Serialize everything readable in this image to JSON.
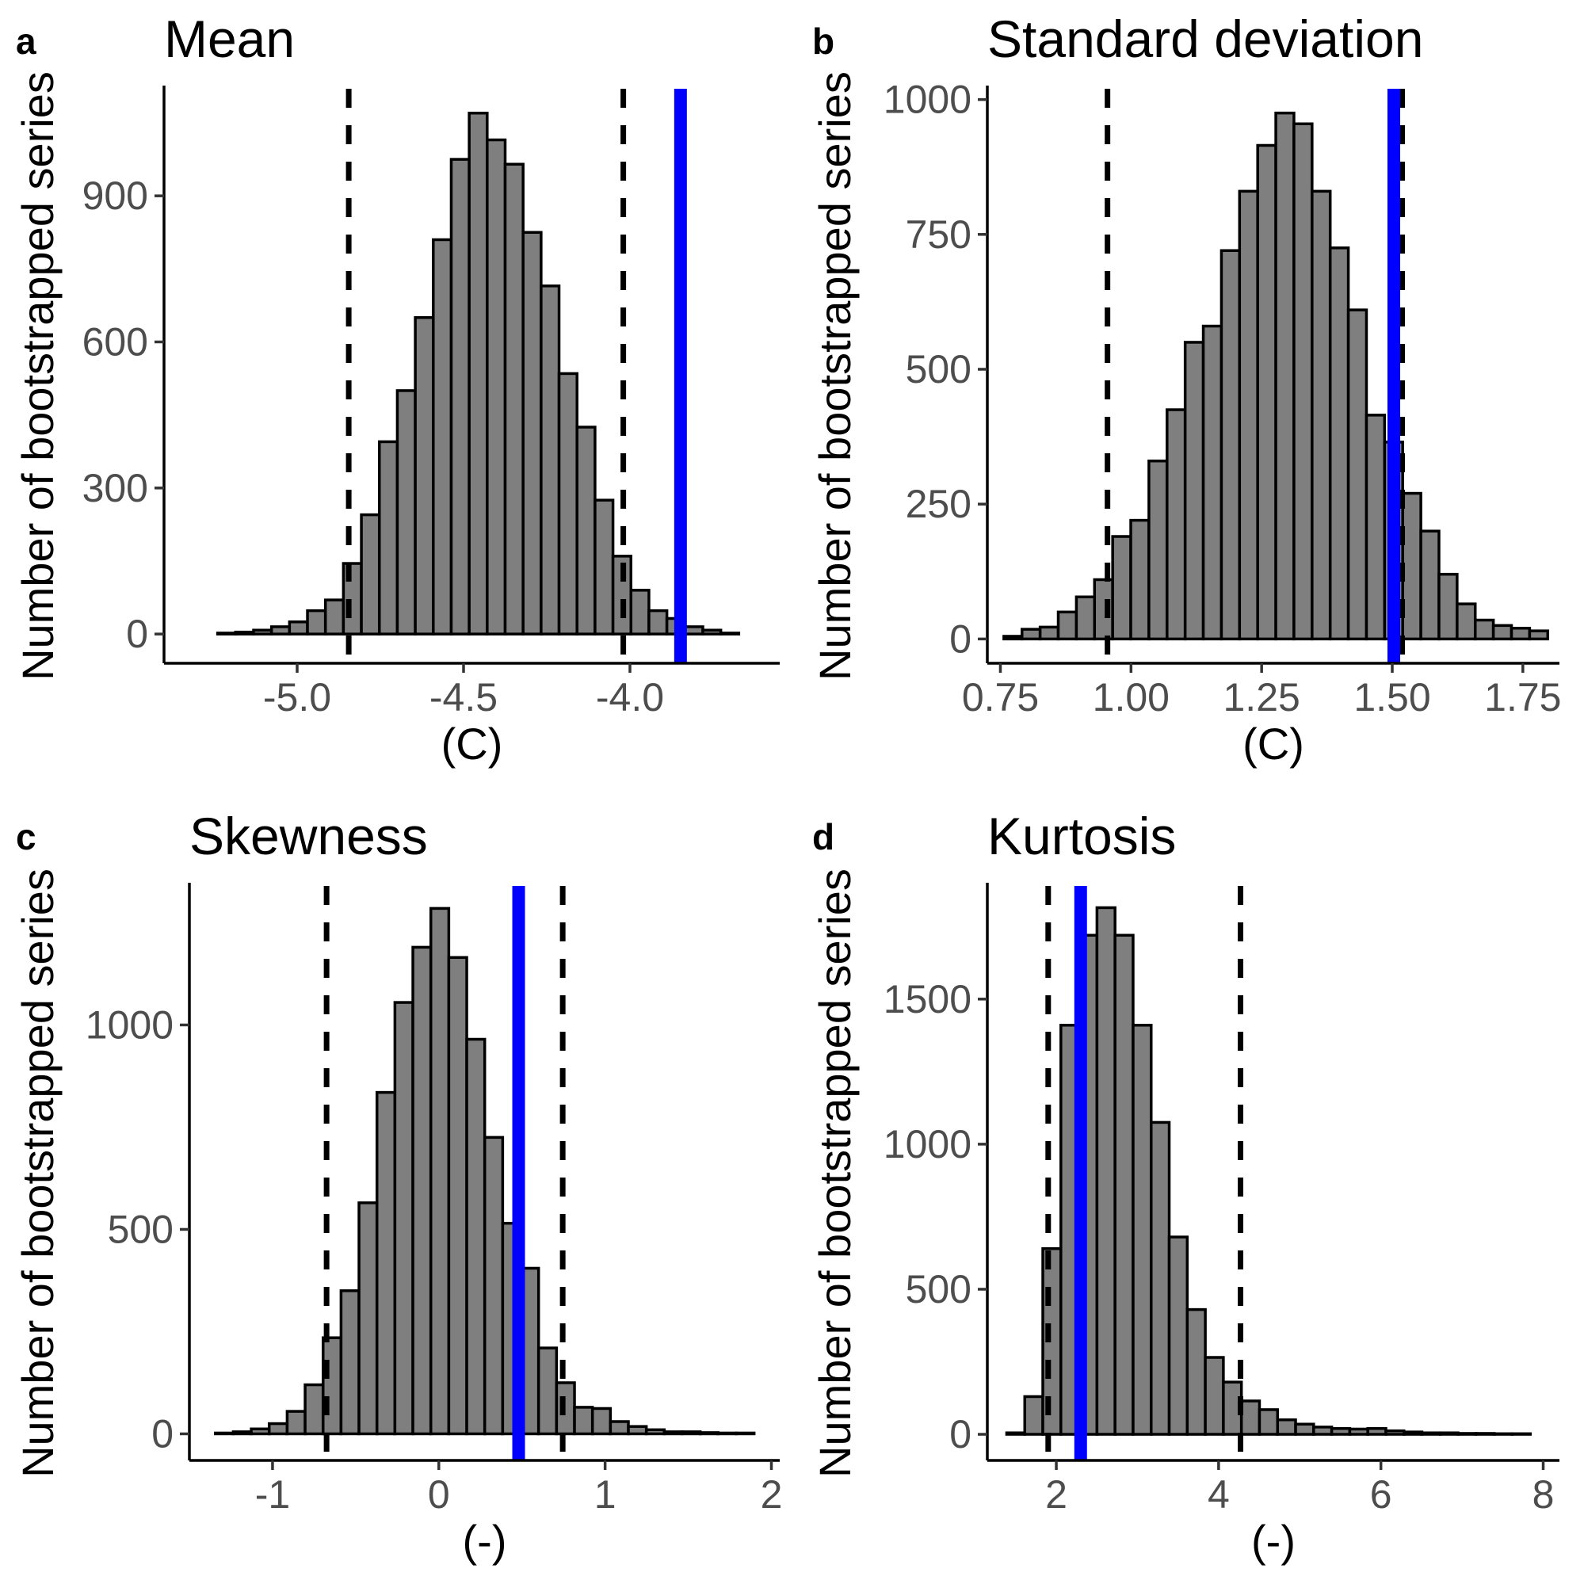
{
  "colors": {
    "bar_fill": "#7f7f7f",
    "bar_border": "#000000",
    "observed_line": "#0000ff",
    "ci_line": "#000000",
    "tick_label": "#4d4d4d"
  },
  "y_axis_title": "Number of bootstrapped series",
  "chart_data": [
    {
      "id": "a",
      "type": "bar",
      "letter": "a",
      "title": "Mean",
      "xlabel": "(C)",
      "ylabel": "Number of bootstrapped series",
      "xlim": [
        -5.4,
        -3.55
      ],
      "ylim": [
        -60,
        1120
      ],
      "xticks": [
        -5.0,
        -4.5,
        -4.0
      ],
      "xtick_labels": [
        "-5.0",
        "-4.5",
        "-4.0"
      ],
      "yticks": [
        0,
        300,
        600,
        900
      ],
      "ytick_labels": [
        "0",
        "300",
        "600",
        "900"
      ],
      "bin_width": 0.054,
      "bin_centers": [
        -5.32,
        -5.266,
        -5.212,
        -5.158,
        -5.104,
        -5.05,
        -4.996,
        -4.942,
        -4.888,
        -4.834,
        -4.78,
        -4.726,
        -4.672,
        -4.618,
        -4.564,
        -4.51,
        -4.456,
        -4.402,
        -4.348,
        -4.294,
        -4.24,
        -4.186,
        -4.132,
        -4.078,
        -4.024,
        -3.97,
        -3.916,
        -3.862,
        -3.808,
        -3.754,
        -3.7
      ],
      "counts": [
        0,
        0,
        2,
        4,
        8,
        15,
        25,
        48,
        70,
        145,
        245,
        395,
        500,
        650,
        810,
        975,
        1070,
        1015,
        965,
        825,
        715,
        535,
        425,
        275,
        160,
        90,
        48,
        32,
        15,
        8,
        2
      ],
      "ci_lower": -4.845,
      "ci_upper": -4.02,
      "observed": -3.848
    },
    {
      "id": "b",
      "type": "bar",
      "letter": "b",
      "title": "Standard deviation",
      "xlabel": "(C)",
      "ylabel": "Number of bootstrapped series",
      "xlim": [
        0.725,
        1.82
      ],
      "ylim": [
        -45,
        1020
      ],
      "xticks": [
        0.75,
        1.0,
        1.25,
        1.5,
        1.75
      ],
      "xtick_labels": [
        "0.75",
        "1.00",
        "1.25",
        "1.50",
        "1.75"
      ],
      "yticks": [
        0,
        250,
        500,
        750,
        1000
      ],
      "ytick_labels": [
        "0",
        "250",
        "500",
        "750",
        "1000"
      ],
      "bin_width": 0.0347,
      "bin_centers": [
        0.774,
        0.8087,
        0.8434,
        0.8781,
        0.9128,
        0.9475,
        0.9822,
        1.0169,
        1.0516,
        1.0863,
        1.121,
        1.1557,
        1.1904,
        1.2251,
        1.2598,
        1.2945,
        1.3292,
        1.3639,
        1.3986,
        1.4333,
        1.468,
        1.5027,
        1.5374,
        1.5721,
        1.6068,
        1.6415,
        1.6762,
        1.7109,
        1.7456,
        1.7803
      ],
      "counts": [
        5,
        18,
        22,
        50,
        78,
        110,
        190,
        220,
        330,
        425,
        550,
        580,
        720,
        830,
        915,
        975,
        955,
        830,
        725,
        610,
        415,
        365,
        270,
        200,
        120,
        65,
        35,
        25,
        20,
        15
      ],
      "ci_lower": 0.955,
      "ci_upper": 1.519,
      "observed": 1.503
    },
    {
      "id": "c",
      "type": "bar",
      "letter": "c",
      "title": "Skewness",
      "xlabel": "(-)",
      "ylabel": "Number of bootstrapped series",
      "xlim": [
        -1.5,
        2.05
      ],
      "ylim": [
        -65,
        1340
      ],
      "xticks": [
        -1,
        0,
        1,
        2
      ],
      "xtick_labels": [
        "-1",
        "0",
        "1",
        "2"
      ],
      "yticks": [
        0,
        500,
        1000
      ],
      "ytick_labels": [
        "0",
        "500",
        "1000"
      ],
      "bin_width": 0.108,
      "bin_centers": [
        -1.29,
        -1.182,
        -1.074,
        -0.966,
        -0.858,
        -0.75,
        -0.642,
        -0.534,
        -0.426,
        -0.318,
        -0.21,
        -0.102,
        0.006,
        0.114,
        0.222,
        0.33,
        0.438,
        0.546,
        0.654,
        0.762,
        0.87,
        0.978,
        1.086,
        1.194,
        1.302,
        1.41,
        1.518,
        1.626,
        1.734,
        1.842
      ],
      "counts": [
        2,
        5,
        12,
        25,
        55,
        120,
        235,
        350,
        565,
        835,
        1055,
        1190,
        1285,
        1165,
        965,
        725,
        515,
        405,
        210,
        125,
        65,
        62,
        30,
        18,
        10,
        5,
        5,
        3,
        2,
        2
      ],
      "ci_lower": -0.675,
      "ci_upper": 0.745,
      "observed": 0.48
    },
    {
      "id": "d",
      "type": "bar",
      "letter": "d",
      "title": "Kurtosis",
      "xlabel": "(-)",
      "ylabel": "Number of bootstrapped series",
      "xlim": [
        1.15,
        8.2
      ],
      "ylim": [
        -90,
        1890
      ],
      "xticks": [
        2,
        4,
        6,
        8
      ],
      "xtick_labels": [
        "2",
        "4",
        "6",
        "8"
      ],
      "yticks": [
        0,
        500,
        1000,
        1500
      ],
      "ytick_labels": [
        "0",
        "500",
        "1000",
        "1500"
      ],
      "bin_width": 0.2225,
      "bin_centers": [
        1.5,
        1.7225,
        1.945,
        2.1675,
        2.39,
        2.6125,
        2.835,
        3.0575,
        3.28,
        3.5025,
        3.725,
        3.9475,
        4.17,
        4.3925,
        4.615,
        4.8375,
        5.06,
        5.2825,
        5.505,
        5.7275,
        5.95,
        6.1725,
        6.395,
        6.6175,
        6.84,
        7.0625,
        7.285,
        7.5075,
        7.73
      ],
      "counts": [
        5,
        130,
        640,
        1410,
        1720,
        1815,
        1720,
        1410,
        1075,
        680,
        430,
        265,
        180,
        115,
        85,
        50,
        35,
        25,
        20,
        18,
        20,
        12,
        8,
        5,
        5,
        3,
        3,
        2,
        2
      ],
      "ci_lower": 1.9,
      "ci_upper": 4.27,
      "observed": 2.3
    }
  ]
}
